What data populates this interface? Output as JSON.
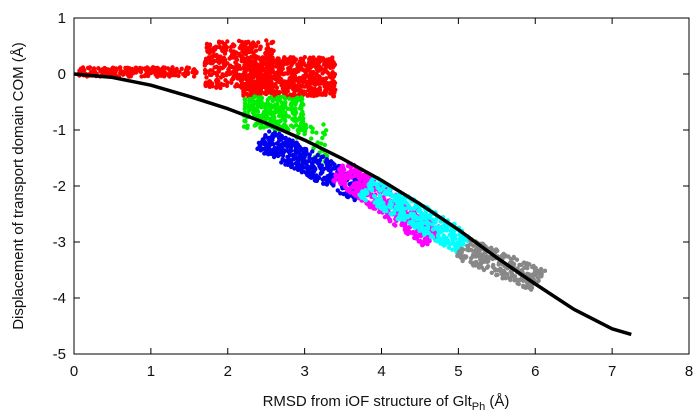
{
  "chart_data": {
    "type": "scatter",
    "xlabel_main": "RMSD from iOF structure of Glt",
    "xlabel_sub": "Ph",
    "xlabel_unit": " (Å)",
    "ylabel": "Displacement of transport domain COM (Å)",
    "xlim": [
      0,
      8
    ],
    "ylim": [
      -5,
      1
    ],
    "xticks": [
      0,
      1,
      2,
      3,
      4,
      5,
      6,
      7,
      8
    ],
    "yticks": [
      -5,
      -4,
      -3,
      -2,
      -1,
      0,
      1
    ],
    "grid": false,
    "legend": "none",
    "series": [
      {
        "color": "#ff0000",
        "clusters": [
          {
            "x": [
              0.05,
              1.6
            ],
            "y": [
              -0.05,
              0.12
            ],
            "n": 220
          },
          {
            "x": [
              1.7,
              2.6
            ],
            "y": [
              -0.25,
              0.6
            ],
            "n": 380
          },
          {
            "x": [
              2.2,
              3.4
            ],
            "y": [
              -0.4,
              0.3
            ],
            "n": 650
          }
        ]
      },
      {
        "color": "#00ee00",
        "clusters": [
          {
            "x": [
              2.2,
              3.0
            ],
            "y": [
              -1.0,
              -0.4
            ],
            "n": 260
          },
          {
            "x": [
              2.9,
              3.3
            ],
            "y": [
              -1.6,
              -0.9
            ],
            "n": 50
          }
        ]
      },
      {
        "color": "#0000ee",
        "clusters": [
          {
            "x": [
              2.45,
              3.75
            ],
            "y": [
              -2.1,
              -1.15
            ],
            "n": 420,
            "band": true
          }
        ]
      },
      {
        "color": "#ff00ff",
        "clusters": [
          {
            "x": [
              3.45,
              4.7
            ],
            "y": [
              -2.95,
              -1.7
            ],
            "n": 420,
            "band": true
          }
        ]
      },
      {
        "color": "#00ffff",
        "clusters": [
          {
            "x": [
              3.8,
              5.1
            ],
            "y": [
              -3.05,
              -2.0
            ],
            "n": 360,
            "band": true
          }
        ]
      },
      {
        "color": "#888888",
        "clusters": [
          {
            "x": [
              5.05,
              6.05
            ],
            "y": [
              -3.7,
              -3.1
            ],
            "n": 260,
            "band": true
          }
        ]
      }
    ],
    "fit_curve": {
      "color": "#000000",
      "x": [
        0,
        0.5,
        1,
        1.5,
        2,
        2.5,
        3,
        3.5,
        4,
        4.5,
        5,
        5.5,
        6,
        6.5,
        7,
        7.25
      ],
      "y": [
        0,
        -0.06,
        -0.2,
        -0.4,
        -0.62,
        -0.88,
        -1.18,
        -1.52,
        -1.9,
        -2.32,
        -2.78,
        -3.28,
        -3.75,
        -4.2,
        -4.55,
        -4.65
      ]
    }
  }
}
